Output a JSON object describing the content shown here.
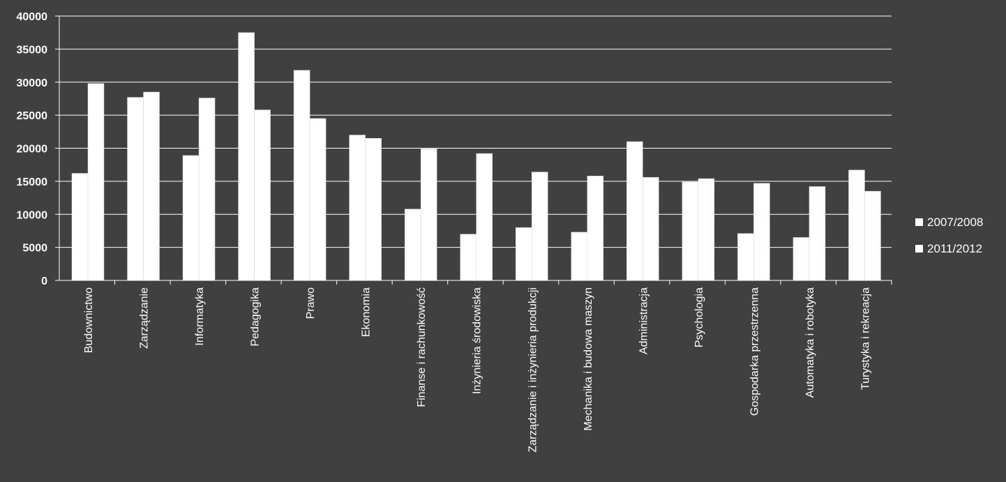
{
  "chart_data": {
    "type": "bar",
    "title": "",
    "xlabel": "",
    "ylabel": "",
    "ylim": [
      0,
      40000
    ],
    "yticks": [
      "0",
      "5000",
      "10000",
      "15000",
      "20000",
      "25000",
      "30000",
      "35000",
      "40000"
    ],
    "yticks_values": [
      0,
      5000,
      10000,
      15000,
      20000,
      25000,
      30000,
      35000,
      40000
    ],
    "grid": true,
    "legend_position": "right",
    "colors": {
      "background": "#404040",
      "bars": "#ffffff",
      "grid": "#ffffff",
      "text": "#ffffff"
    },
    "categories": [
      "Budownictwo",
      "Zarządzanie",
      "Informatyka",
      "Pedagogika",
      "Prawo",
      "Ekonomia",
      "Finanse i rachunkowość",
      "Inżynieria środowiska",
      "Zarządzanie i inżynieria produkcji",
      "Mechanika i budowa maszyn",
      "Administracja",
      "Psychologia",
      "Gospodarka przestrzenna",
      "Automatyka i robotyka",
      "Turystyka i rekreacja"
    ],
    "series": [
      {
        "name": "2007/2008",
        "values": [
          16200,
          27700,
          18900,
          37500,
          31800,
          22000,
          10800,
          7000,
          8000,
          7300,
          21000,
          14900,
          7100,
          6500,
          16700
        ]
      },
      {
        "name": "2011/2012",
        "values": [
          29800,
          28500,
          27600,
          25800,
          24500,
          21500,
          19900,
          19200,
          16400,
          15800,
          15600,
          15400,
          14700,
          14200,
          13500
        ]
      }
    ]
  }
}
